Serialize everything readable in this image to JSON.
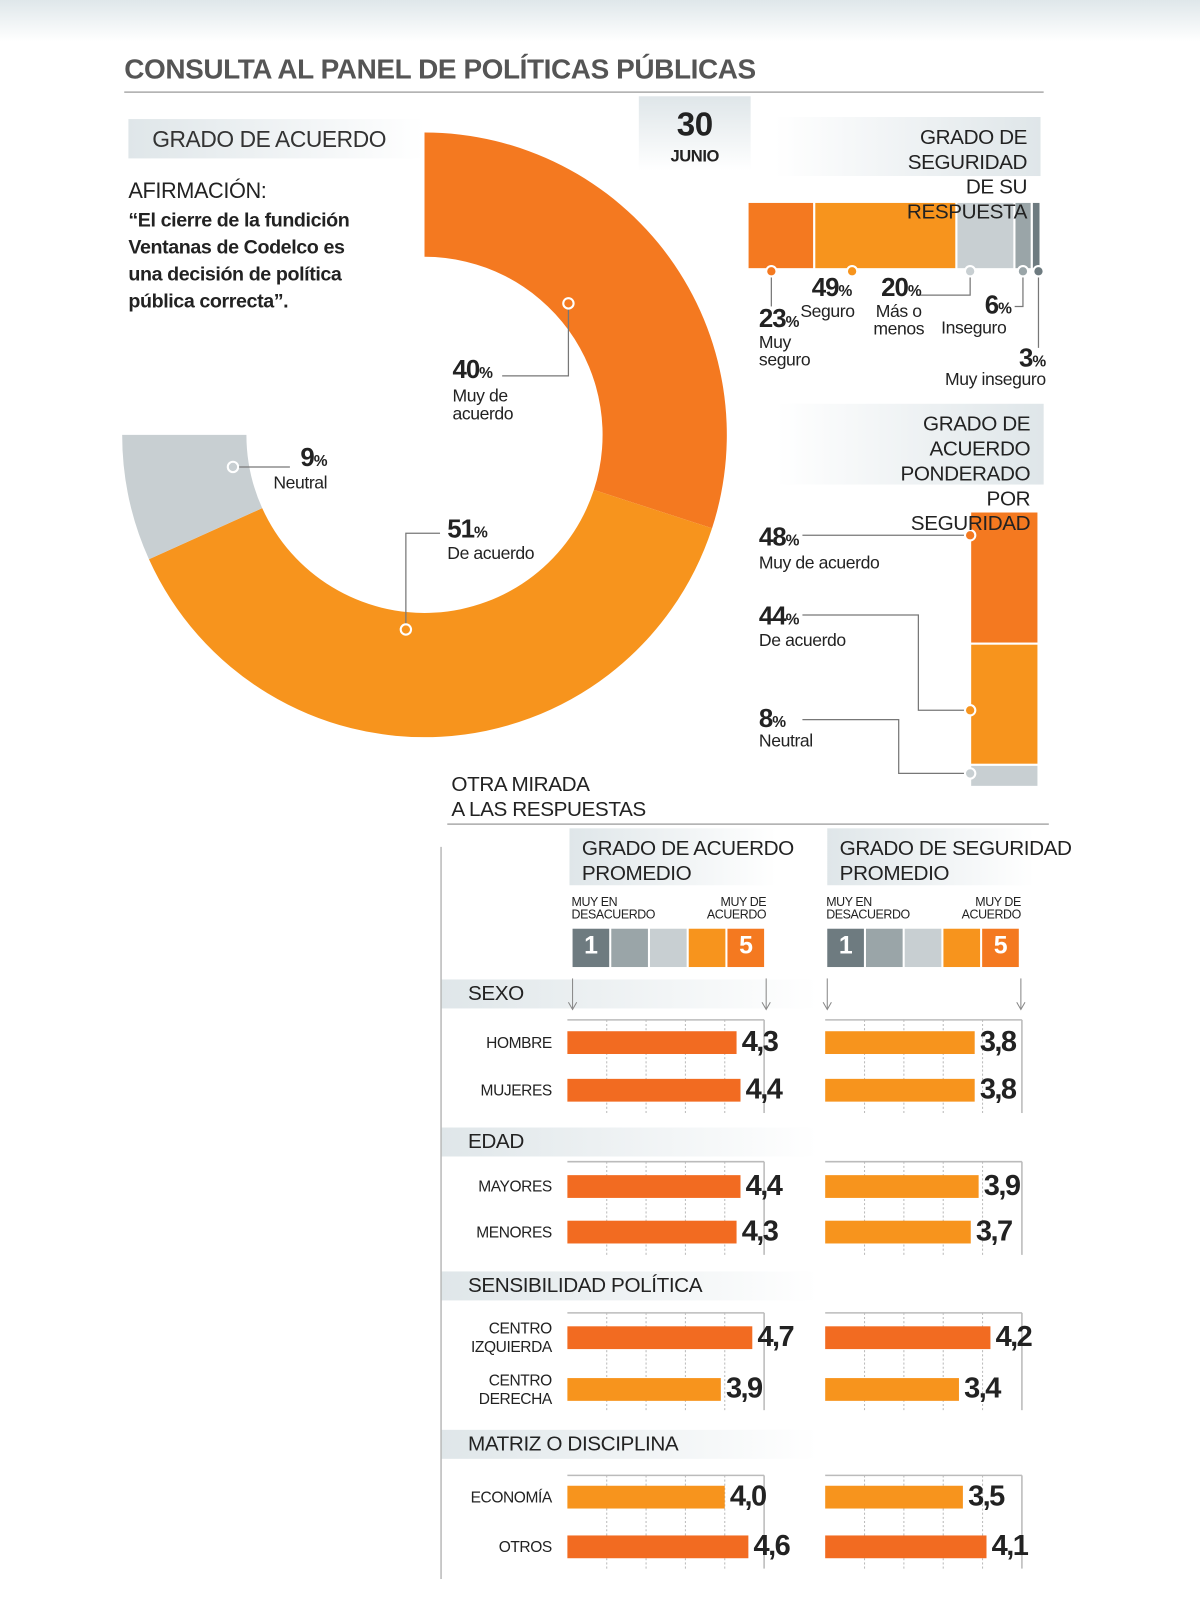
{
  "title": "CONSULTA AL PANEL DE POLÍTICAS PÚBLICAS",
  "date": {
    "day": "30",
    "month": "JUNIO"
  },
  "chart_data": [
    {
      "type": "donut",
      "title": "GRADO DE ACUERDO",
      "subtitle": "AFIRMACIÓN:",
      "annotation": "“El cierre de la fundición Ventanas de Codelco es una decisión de política pública correcta”.",
      "categories": [
        "Muy de\nacuerdo",
        "De acuerdo",
        "Neutral"
      ],
      "values": [
        40,
        51,
        9
      ],
      "value_labels": [
        "40%",
        "51%",
        "9%"
      ],
      "colors": [
        "#f47920",
        "#f7941d",
        "#c8cfd2"
      ],
      "sweep": 270
    },
    {
      "type": "stacked_bar",
      "title": "GRADO DE SEGURIDAD\nDE SU RESPUESTA",
      "categories": [
        "Muy\nseguro",
        "Seguro",
        "Más o\nmenos",
        "Inseguro",
        "Muy inseguro"
      ],
      "values": [
        23,
        49,
        20,
        6,
        3
      ],
      "value_labels": [
        "23%",
        "49%",
        "20%",
        "6%",
        "3%"
      ],
      "colors": [
        "#f47920",
        "#f7941d",
        "#c8cfd2",
        "#9aa5a8",
        "#6e7b80"
      ]
    },
    {
      "type": "stacked_column",
      "title": "GRADO DE ACUERDO\nPONDERADO POR\nSEGURIDAD",
      "categories": [
        "Muy de acuerdo",
        "De acuerdo",
        "Neutral"
      ],
      "values": [
        48,
        44,
        8
      ],
      "value_labels": [
        "48%",
        "44%",
        "8%"
      ],
      "colors": [
        "#f47920",
        "#f7941d",
        "#c8cfd2"
      ]
    },
    {
      "type": "hbar",
      "title": "GRADO DE ACUERDO\nPROMEDIO",
      "scale_labels": [
        "MUY EN\nDESACUERDO",
        "MUY DE\nACUERDO"
      ],
      "scale": [
        1,
        5
      ],
      "scale_colors": [
        "#6e7b80",
        "#9aa5a8",
        "#c8cfd2",
        "#f7941d",
        "#f47920"
      ],
      "values": [
        4.3,
        4.4,
        4.4,
        4.3,
        4.7,
        3.9,
        4.0,
        4.6
      ],
      "value_labels": [
        "4,3",
        "4,4",
        "4,4",
        "4,3",
        "4,7",
        "3,9",
        "4,0",
        "4,6"
      ],
      "colors": [
        "#f26b21",
        "#f26b21",
        "#f26b21",
        "#f26b21",
        "#f26b21",
        "#f7941d",
        "#f7941d",
        "#f26b21"
      ],
      "xlim": [
        0,
        5
      ],
      "xticks": [
        1,
        2,
        3,
        4
      ]
    },
    {
      "type": "hbar",
      "title": "GRADO DE SEGURIDAD\nPROMEDIO",
      "scale_labels": [
        "MUY EN\nDESACUERDO",
        "MUY DE\nACUERDO"
      ],
      "scale": [
        1,
        5
      ],
      "scale_colors": [
        "#6e7b80",
        "#9aa5a8",
        "#c8cfd2",
        "#f7941d",
        "#f47920"
      ],
      "values": [
        3.8,
        3.8,
        3.9,
        3.7,
        4.2,
        3.4,
        3.5,
        4.1
      ],
      "value_labels": [
        "3,8",
        "3,8",
        "3,9",
        "3,7",
        "4,2",
        "3,4",
        "3,5",
        "4,1"
      ],
      "colors": [
        "#f7941d",
        "#f7941d",
        "#f7941d",
        "#f7941d",
        "#f26b21",
        "#f7941d",
        "#f7941d",
        "#f26b21"
      ],
      "xlim": [
        0,
        5
      ],
      "xticks": [
        1,
        2,
        3,
        4
      ]
    }
  ],
  "comparison": {
    "title": "OTRA MIRADA\nA LAS RESPUESTAS",
    "groups": [
      {
        "name": "SEXO",
        "categories": [
          "HOMBRE",
          "MUJERES"
        ]
      },
      {
        "name": "EDAD",
        "categories": [
          "MAYORES",
          "MENORES"
        ]
      },
      {
        "name": "SENSIBILIDAD POLÍTICA",
        "categories": [
          "CENTRO\nIZQUIERDA",
          "CENTRO\nDERECHA"
        ]
      },
      {
        "name": "MATRIZ O DISCIPLINA",
        "categories": [
          "ECONOMÍA",
          "OTROS"
        ]
      }
    ]
  }
}
